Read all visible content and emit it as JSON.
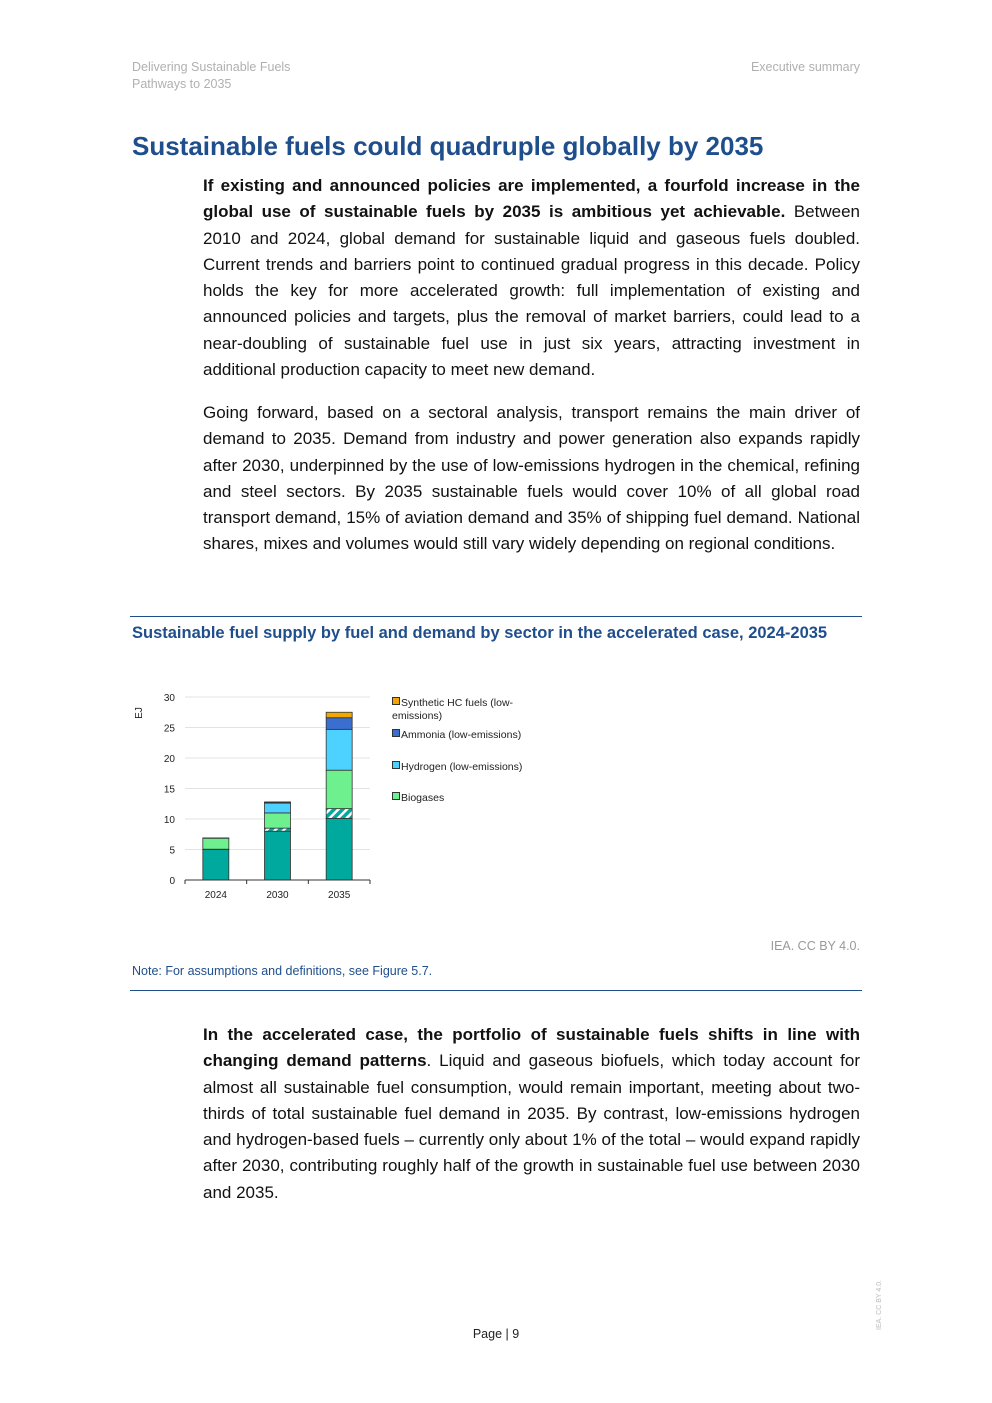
{
  "header": {
    "left_line1": "Delivering Sustainable Fuels",
    "left_line2": "Pathways to 2035",
    "right": "Executive summary"
  },
  "title": "Sustainable fuels could quadruple globally by 2035",
  "para1": {
    "bold": "If existing and announced policies are implemented, a fourfold increase in the global use of sustainable fuels by 2035 is ambitious yet achievable.",
    "text": " Between 2010 and 2024, global demand for sustainable liquid and gaseous fuels doubled. Current trends and barriers point to continued gradual progress in this decade. Policy holds the key for more accelerated growth: full implementation of existing and announced policies and targets, plus the removal of market barriers, could lead to a near-doubling of sustainable fuel use in just six years, attracting investment in additional production capacity to meet new demand."
  },
  "para2": "Going forward, based on a sectoral analysis, transport remains the main driver of demand to 2035. Demand from industry and power generation also expands rapidly after 2030, underpinned by the use of low-emissions hydrogen in the chemical, refining and steel sectors. By 2035 sustainable fuels would cover 10% of all global road transport demand, 15% of aviation demand and 35% of shipping fuel demand. National shares, mixes and volumes would still vary widely depending on regional conditions.",
  "figure": {
    "title": "Sustainable fuel supply by fuel and demand by sector in the accelerated case, 2024-2035",
    "note": "Note: For assumptions and definitions, see Figure 5.7.",
    "credit": "IEA. CC BY 4.0."
  },
  "chart_data": {
    "type": "bar",
    "stacked": true,
    "ylabel": "EJ",
    "ylim": [
      0,
      30
    ],
    "yticks": [
      0,
      5,
      10,
      15,
      20,
      25,
      30
    ],
    "grid": true,
    "legend": "right",
    "categories": [
      "2024",
      "2030",
      "2035"
    ],
    "series": [
      {
        "values": [
          5.0,
          8.0,
          10.1
        ],
        "color": "#00a99d"
      },
      {
        "values": [
          0.05,
          0.5,
          1.6
        ],
        "color": "#00a99d",
        "hatched": true
      },
      {
        "name": "Biogases",
        "values": [
          1.8,
          2.5,
          6.3
        ],
        "color": "#6df08d"
      },
      {
        "name": "Hydrogen (low-emissions)",
        "values": [
          0.05,
          1.6,
          6.7
        ],
        "color": "#4dd2ff"
      },
      {
        "name": "Ammonia (low-emissions)",
        "values": [
          0,
          0.1,
          1.9
        ],
        "color": "#3a6fd0"
      },
      {
        "name": "Synthetic HC fuels (low-emissions)",
        "values": [
          0,
          0.1,
          0.9
        ],
        "color": "#f0a800"
      }
    ]
  },
  "para3": {
    "bold": "In the accelerated case, the portfolio of sustainable fuels shifts in line with changing demand patterns",
    "text": ". Liquid and gaseous biofuels, which today account for almost all sustainable fuel consumption, would remain important, meeting about two-thirds of total sustainable fuel demand in 2035. By contrast, low-emissions hydrogen and hydrogen-based fuels – currently only about 1% of the total – would expand rapidly after 2030, contributing roughly half of the growth in sustainable fuel use between 2030 and 2035."
  },
  "footer": {
    "page": "Page | 9",
    "side": "IEA. CC BY 4.0."
  }
}
